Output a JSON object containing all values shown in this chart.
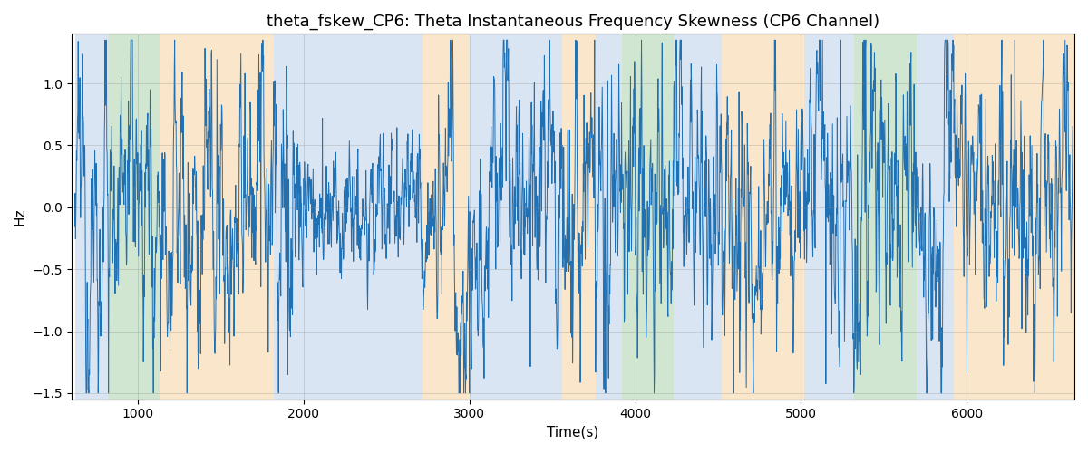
{
  "title": "theta_fskew_CP6: Theta Instantaneous Frequency Skewness (CP6 Channel)",
  "xlabel": "Time(s)",
  "ylabel": "Hz",
  "xlim": [
    600,
    6650
  ],
  "ylim": [
    -1.55,
    1.4
  ],
  "line_color": "#2070b4",
  "line_width": 0.7,
  "background_bands": [
    {
      "xmin": 620,
      "xmax": 820,
      "color": "#aec7e8",
      "alpha": 0.45
    },
    {
      "xmin": 820,
      "xmax": 1130,
      "color": "#98c998",
      "alpha": 0.45
    },
    {
      "xmin": 1130,
      "xmax": 1820,
      "color": "#f5c98a",
      "alpha": 0.45
    },
    {
      "xmin": 1820,
      "xmax": 2720,
      "color": "#aec7e8",
      "alpha": 0.45
    },
    {
      "xmin": 2720,
      "xmax": 3000,
      "color": "#f5c98a",
      "alpha": 0.45
    },
    {
      "xmin": 3000,
      "xmax": 3560,
      "color": "#aec7e8",
      "alpha": 0.45
    },
    {
      "xmin": 3560,
      "xmax": 3760,
      "color": "#f5c98a",
      "alpha": 0.45
    },
    {
      "xmin": 3760,
      "xmax": 3920,
      "color": "#aec7e8",
      "alpha": 0.45
    },
    {
      "xmin": 3920,
      "xmax": 4230,
      "color": "#98c998",
      "alpha": 0.45
    },
    {
      "xmin": 4230,
      "xmax": 4520,
      "color": "#aec7e8",
      "alpha": 0.45
    },
    {
      "xmin": 4520,
      "xmax": 5020,
      "color": "#f5c98a",
      "alpha": 0.45
    },
    {
      "xmin": 5020,
      "xmax": 5320,
      "color": "#aec7e8",
      "alpha": 0.45
    },
    {
      "xmin": 5320,
      "xmax": 5700,
      "color": "#98c998",
      "alpha": 0.45
    },
    {
      "xmin": 5700,
      "xmax": 5920,
      "color": "#aec7e8",
      "alpha": 0.45
    },
    {
      "xmin": 5920,
      "xmax": 6650,
      "color": "#f5c98a",
      "alpha": 0.45
    }
  ],
  "grid": true,
  "grid_color": "#888888",
  "grid_alpha": 0.4,
  "grid_linewidth": 0.5,
  "title_fontsize": 13,
  "label_fontsize": 11,
  "tick_fontsize": 10,
  "seed": 12345,
  "x_start": 620,
  "x_end": 6640,
  "n_points": 3000
}
